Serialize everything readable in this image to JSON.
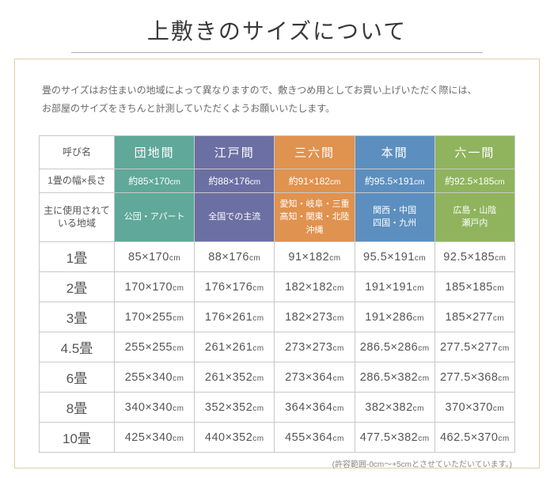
{
  "title": "上敷きのサイズについて",
  "intro_line1": "畳のサイズはお住まいの地域によって異なりますので、敷きつめ用としてお買い上げいただく際には、",
  "intro_line2": "お部屋のサイズをきちんと計測していただくようお願いいたします。",
  "row_label_name": "呼び名",
  "row_label_unit": "1畳の幅×長さ",
  "row_label_region1": "主に使用されて",
  "row_label_region2": "いる地域",
  "columns": [
    {
      "name": "団地間",
      "approx": "約85×170cm",
      "region": "公団・アパート",
      "color": "#5fa89a"
    },
    {
      "name": "江戸間",
      "approx": "約88×176cm",
      "region": "全国での主流",
      "color": "#6b6fa3"
    },
    {
      "name": "三六間",
      "approx": "約91×182cm",
      "region": "愛知・岐阜・三重\n高知・関東・北陸\n沖縄",
      "color": "#e0924f"
    },
    {
      "name": "本間",
      "approx": "約95.5×191cm",
      "region": "関西・中国\n四国・九州",
      "color": "#5c8fbf"
    },
    {
      "name": "六一間",
      "approx": "約92.5×185cm",
      "region": "広島・山陰\n瀬戸内",
      "color": "#8fb45d"
    }
  ],
  "rows": [
    {
      "label": "1畳",
      "cells": [
        "85×170cm",
        "88×176cm",
        "91×182cm",
        "95.5×191cm",
        "92.5×185cm"
      ]
    },
    {
      "label": "2畳",
      "cells": [
        "170×170cm",
        "176×176cm",
        "182×182cm",
        "191×191cm",
        "185×185cm"
      ]
    },
    {
      "label": "3畳",
      "cells": [
        "170×255cm",
        "176×261cm",
        "182×273cm",
        "191×286cm",
        "185×277cm"
      ]
    },
    {
      "label": "4.5畳",
      "cells": [
        "255×255cm",
        "261×261cm",
        "273×273cm",
        "286.5×286cm",
        "277.5×277cm"
      ]
    },
    {
      "label": "6畳",
      "cells": [
        "255×340cm",
        "261×352cm",
        "273×364cm",
        "286.5×382cm",
        "277.5×368cm"
      ]
    },
    {
      "label": "8畳",
      "cells": [
        "340×340cm",
        "352×352cm",
        "364×364cm",
        "382×382cm",
        "370×370cm"
      ]
    },
    {
      "label": "10畳",
      "cells": [
        "425×340cm",
        "440×352cm",
        "455×364cm",
        "477.5×382cm",
        "462.5×370cm"
      ]
    }
  ],
  "footnote": "(許容範囲-0cm～+5cmとさせていただいています。)"
}
